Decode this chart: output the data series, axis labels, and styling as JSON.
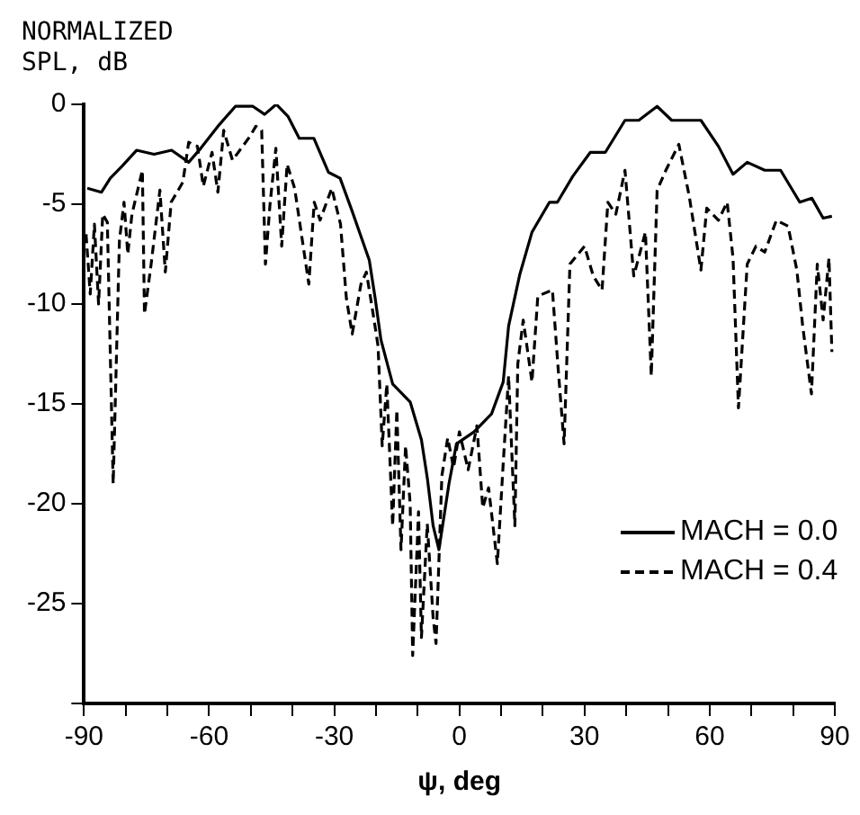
{
  "chart_data": {
    "type": "line",
    "xlabel": "ψ, deg",
    "ylabel": "NORMALIZED SPL, dB",
    "xlim": [
      -90,
      90
    ],
    "xticks": [
      -90,
      {
        "value": -80,
        "label": null
      },
      {
        "value": -70,
        "label": null
      },
      -60,
      {
        "value": -50,
        "label": null
      },
      {
        "value": -40,
        "label": null
      },
      -30,
      {
        "value": -20,
        "label": null
      },
      {
        "value": -10,
        "label": null
      },
      0,
      {
        "value": 10,
        "label": null
      },
      {
        "value": 20,
        "label": null
      },
      30,
      {
        "value": 40,
        "label": null
      },
      {
        "value": 50,
        "label": null
      },
      60,
      {
        "value": 70,
        "label": null
      },
      {
        "value": 80,
        "label": null
      },
      90
    ],
    "ylim": [
      -30,
      0
    ],
    "yticks": [
      0,
      -5,
      -10,
      -15,
      -20,
      -25,
      {
        "value": -30,
        "label": null
      }
    ],
    "grid": false,
    "legend": "bottom right",
    "marker": "none",
    "series": [
      {
        "name": "MACH = 0.0",
        "color": "#000000",
        "line_style": "solid",
        "x": [
          -89.2,
          -85.8,
          -83.7,
          -80.9,
          -77.4,
          -73.2,
          -69,
          -64.9,
          -62,
          -57.9,
          -53.7,
          -49.5,
          -46.7,
          -43.9,
          -41.1,
          -38.4,
          -34.9,
          -31.4,
          -28.6,
          -25.8,
          -21.6,
          -20.2,
          -18.8,
          -16,
          -11.8,
          -9.1,
          -7.7,
          -6.3,
          -4.9,
          -2.5,
          -0.7,
          3.5,
          7.7,
          10.5,
          11.8,
          14.5,
          17.4,
          21.6,
          23.5,
          27.2,
          31.4,
          35,
          39.7,
          43,
          47.4,
          50.9,
          57.9,
          62.1,
          65.6,
          69,
          73.2,
          77,
          81.6,
          84.5,
          87.2,
          89.3
        ],
        "values": [
          -4.2,
          -4.4,
          -3.7,
          -3.1,
          -2.3,
          -2.5,
          -2.3,
          -2.9,
          -2.2,
          -1.1,
          -0.1,
          -0.1,
          -0.5,
          0,
          -0.6,
          -1.7,
          -1.7,
          -3.4,
          -3.7,
          -5.3,
          -7.8,
          -9.7,
          -11.8,
          -14,
          -14.9,
          -16.8,
          -18.7,
          -21.1,
          -22.3,
          -19,
          -17,
          -16.4,
          -15.5,
          -13.9,
          -11.1,
          -8.5,
          -6.4,
          -4.9,
          -4.9,
          -3.6,
          -2.4,
          -2.4,
          -0.8,
          -0.8,
          -0.1,
          -0.8,
          -0.8,
          -2.1,
          -3.5,
          -2.9,
          -3.3,
          -3.3,
          -4.9,
          -4.7,
          -5.7,
          -5.6
        ]
      },
      {
        "name": "MACH = 0.4",
        "color": "#000000",
        "line_style": "dashed",
        "x": [
          -89.5,
          -88.5,
          -87.5,
          -86.5,
          -85.5,
          -84.4,
          -83,
          -81.5,
          -80.4,
          -79.5,
          -78.5,
          -76,
          -75.5,
          -73.9,
          -71.8,
          -70.5,
          -69.1,
          -66.3,
          -64.9,
          -62.8,
          -61.4,
          -59.3,
          -57.9,
          -56.5,
          -54.4,
          -52.3,
          -50.2,
          -48.8,
          -47.4,
          -46.5,
          -45.4,
          -44,
          -42.6,
          -41.3,
          -39.5,
          -36.1,
          -34.8,
          -33.4,
          -30.6,
          -28.5,
          -27.1,
          -25.7,
          -23.6,
          -22.3,
          -20.9,
          -19.5,
          -18.5,
          -17.4,
          -16,
          -15,
          -14,
          -12.9,
          -11.8,
          -11.2,
          -9.8,
          -9.1,
          -7.7,
          -6.3,
          -5.6,
          -4.2,
          -2.8,
          -1.4,
          0,
          2.1,
          4.2,
          5.6,
          7,
          9.1,
          10.5,
          11.8,
          13.3,
          14,
          15.3,
          17.4,
          18.8,
          22.3,
          23.7,
          25.1,
          26.5,
          30,
          32.1,
          34.2,
          35.6,
          37.5,
          39.7,
          41.8,
          44.6,
          46,
          47.4,
          49.5,
          52.6,
          55.1,
          57.9,
          59.3,
          62.1,
          64.2,
          65.6,
          66.9,
          69,
          71.1,
          73.2,
          76,
          78.8,
          80.9,
          82.3,
          84.4,
          85.8,
          87.2,
          88.6,
          89.3
        ],
        "values": [
          -6.5,
          -9.5,
          -6,
          -10,
          -5.5,
          -5.9,
          -19,
          -6.8,
          -4.9,
          -7.5,
          -5.5,
          -3.3,
          -10.5,
          -8,
          -4.3,
          -8.4,
          -4.9,
          -3.9,
          -1.9,
          -2.1,
          -4.1,
          -2.4,
          -4.4,
          -1.3,
          -2.8,
          -2.2,
          -1.6,
          -1.1,
          -1.3,
          -8,
          -5,
          -2.2,
          -7.1,
          -3,
          -4.2,
          -9,
          -4.9,
          -5.8,
          -4.2,
          -6,
          -9.7,
          -11.5,
          -9,
          -8.4,
          -10.2,
          -12.1,
          -17.1,
          -14,
          -21.1,
          -15.3,
          -22.3,
          -17.1,
          -20,
          -27.6,
          -20.4,
          -26.7,
          -21,
          -25.7,
          -27,
          -18.6,
          -16.7,
          -18.2,
          -16.4,
          -18.3,
          -16.1,
          -20.2,
          -19.2,
          -23,
          -18,
          -13.6,
          -21.1,
          -13,
          -10.8,
          -13.9,
          -9.6,
          -9.3,
          -13.3,
          -17,
          -8,
          -7.1,
          -8.6,
          -9.3,
          -4.9,
          -5.5,
          -3.3,
          -8.6,
          -6.4,
          -13.6,
          -4.3,
          -3.3,
          -2,
          -4.6,
          -8.3,
          -5.2,
          -5.8,
          -4.9,
          -7.7,
          -15.2,
          -8,
          -7.1,
          -7.4,
          -5.8,
          -6.1,
          -8.3,
          -11.1,
          -14.5,
          -8,
          -10.8,
          -7.7,
          -12.4
        ]
      }
    ]
  }
}
